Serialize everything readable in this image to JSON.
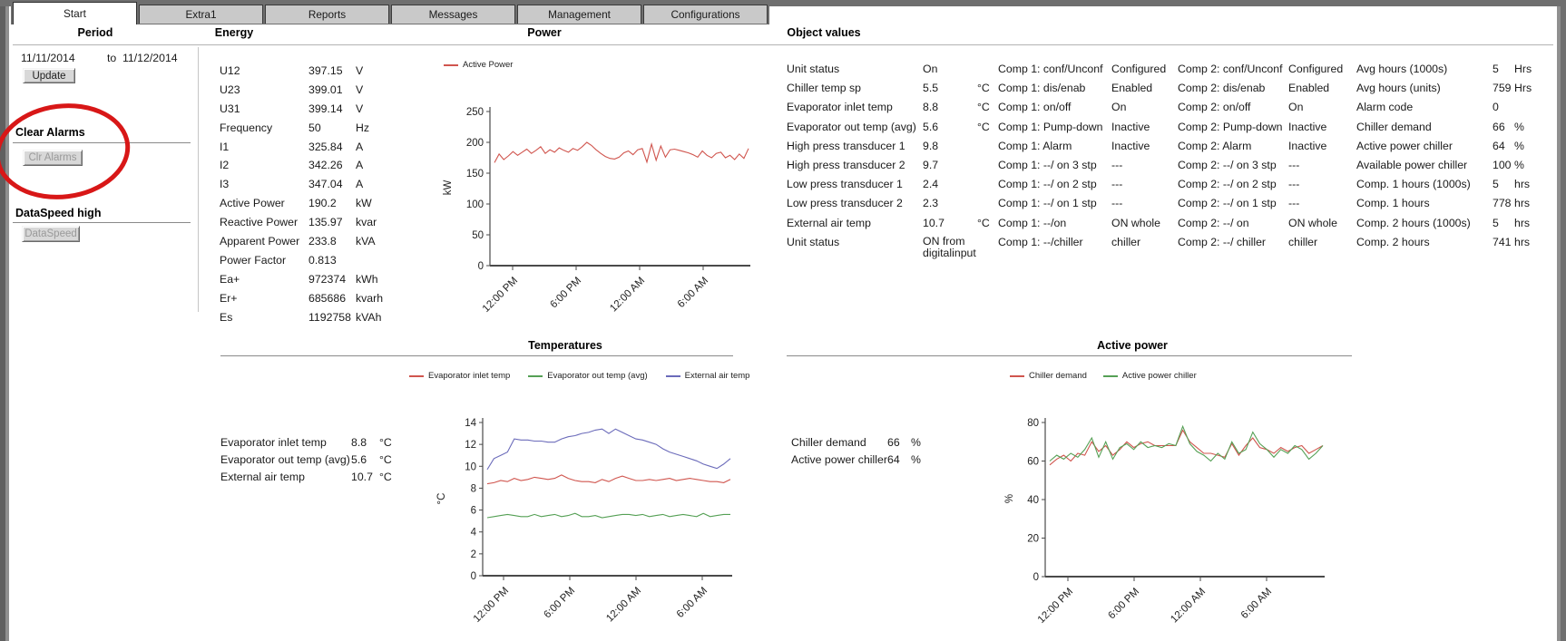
{
  "tabs": [
    {
      "label": "Start",
      "active": true
    },
    {
      "label": "Extra1",
      "active": false
    },
    {
      "label": "Reports",
      "active": false
    },
    {
      "label": "Messages",
      "active": false
    },
    {
      "label": "Management",
      "active": false
    },
    {
      "label": "Configurations",
      "active": false
    }
  ],
  "sections": {
    "period": {
      "title": "Period",
      "date_from": "11/11/2014",
      "to_label": "to",
      "date_to": "11/12/2014",
      "update_button": "Update",
      "clear_alarms_title": "Clear Alarms",
      "clr_alarms_button": "Clr Alarms",
      "dataspeed_title": "DataSpeed high",
      "dataspeed_button": "DataSpeed"
    },
    "energy": {
      "title": "Energy",
      "rows": [
        {
          "label": "U12",
          "value": "397.15",
          "unit": "V"
        },
        {
          "label": "U23",
          "value": "399.01",
          "unit": "V"
        },
        {
          "label": "U31",
          "value": "399.14",
          "unit": "V"
        },
        {
          "label": "Frequency",
          "value": "50",
          "unit": "Hz"
        },
        {
          "label": "I1",
          "value": "325.84",
          "unit": "A"
        },
        {
          "label": "I2",
          "value": "342.26",
          "unit": "A"
        },
        {
          "label": "I3",
          "value": "347.04",
          "unit": "A"
        },
        {
          "label": "Active Power",
          "value": "190.2",
          "unit": "kW"
        },
        {
          "label": "Reactive Power",
          "value": "135.97",
          "unit": "kvar"
        },
        {
          "label": "Apparent Power",
          "value": "233.8",
          "unit": "kVA"
        },
        {
          "label": "Power Factor",
          "value": "0.813",
          "unit": ""
        },
        {
          "label": "Ea+",
          "value": "972374",
          "unit": "kWh"
        },
        {
          "label": "Er+",
          "value": "685686",
          "unit": "kvarh"
        },
        {
          "label": "Es",
          "value": "1192758",
          "unit": "kVAh"
        }
      ]
    },
    "power": {
      "title": "Power"
    },
    "object_values": {
      "title": "Object values",
      "rows": [
        {
          "a_label": "Unit status",
          "a_value": "On",
          "a_unit": "",
          "b_label": "Comp 1: conf/Unconf",
          "b_value": "Configured",
          "c_label": "Comp 2: conf/Unconf",
          "c_value": "Configured",
          "d_label": "Avg hours (1000s)",
          "d_value": "5",
          "d_unit": "Hrs"
        },
        {
          "a_label": "Chiller temp sp",
          "a_value": "5.5",
          "a_unit": "°C",
          "b_label": "Comp 1: dis/enab",
          "b_value": "Enabled",
          "c_label": "Comp 2: dis/enab",
          "c_value": "Enabled",
          "d_label": "Avg hours (units)",
          "d_value": "759",
          "d_unit": "Hrs"
        },
        {
          "a_label": "Evaporator inlet temp",
          "a_value": "8.8",
          "a_unit": "°C",
          "b_label": "Comp 1: on/off",
          "b_value": "On",
          "c_label": "Comp 2: on/off",
          "c_value": "On",
          "d_label": "Alarm code",
          "d_value": "0",
          "d_unit": ""
        },
        {
          "a_label": "Evaporator out temp (avg)",
          "a_value": "5.6",
          "a_unit": "°C",
          "b_label": "Comp 1: Pump-down",
          "b_value": "Inactive",
          "c_label": "Comp 2: Pump-down",
          "c_value": "Inactive",
          "d_label": "Chiller demand",
          "d_value": "66",
          "d_unit": "%"
        },
        {
          "a_label": "High press transducer 1",
          "a_value": "9.8",
          "a_unit": "",
          "b_label": "Comp 1: Alarm",
          "b_value": "Inactive",
          "c_label": "Comp 2: Alarm",
          "c_value": "Inactive",
          "d_label": "Active power chiller",
          "d_value": "64",
          "d_unit": "%"
        },
        {
          "a_label": "High press transducer 2",
          "a_value": "9.7",
          "a_unit": "",
          "b_label": "Comp 1: --/ on 3 stp",
          "b_value": "---",
          "c_label": "Comp 2: --/ on 3 stp",
          "c_value": "---",
          "d_label": "Available power chiller",
          "d_value": "100",
          "d_unit": "%"
        },
        {
          "a_label": "Low press transducer 1",
          "a_value": "2.4",
          "a_unit": "",
          "b_label": "Comp 1: --/ on 2 stp",
          "b_value": "---",
          "c_label": "Comp 2: --/ on 2 stp",
          "c_value": "---",
          "d_label": "Comp. 1 hours (1000s)",
          "d_value": "5",
          "d_unit": "hrs"
        },
        {
          "a_label": "Low press transducer 2",
          "a_value": "2.3",
          "a_unit": "",
          "b_label": "Comp 1: --/ on 1 stp",
          "b_value": "---",
          "c_label": "Comp 2: --/ on 1 stp",
          "c_value": "---",
          "d_label": "Comp. 1 hours",
          "d_value": "778",
          "d_unit": "hrs"
        },
        {
          "a_label": "External air temp",
          "a_value": "10.7",
          "a_unit": "°C",
          "b_label": "Comp 1: --/on",
          "b_value": "ON whole",
          "c_label": "Comp 2: --/ on",
          "c_value": "ON whole",
          "d_label": "Comp. 2 hours (1000s)",
          "d_value": "5",
          "d_unit": "hrs"
        },
        {
          "a_label": "Unit status",
          "a_value": "ON from digitalinput",
          "a_unit": "",
          "b_label": "Comp 1: --/chiller",
          "b_value": "chiller",
          "c_label": "Comp 2: --/ chiller",
          "c_value": "chiller",
          "d_label": "Comp. 2 hours",
          "d_value": "741",
          "d_unit": "hrs"
        }
      ]
    },
    "temperatures": {
      "title": "Temperatures",
      "readouts": [
        {
          "label": "Evaporator inlet temp",
          "value": "8.8",
          "unit": "°C"
        },
        {
          "label": "Evaporator out temp (avg)",
          "value": "5.6",
          "unit": "°C"
        },
        {
          "label": "External air temp",
          "value": "10.7",
          "unit": "°C"
        }
      ]
    },
    "active_power": {
      "title": "Active power",
      "readouts": [
        {
          "label": "Chiller demand",
          "value": "66",
          "unit": "%"
        },
        {
          "label": "Active power chiller",
          "value": "64",
          "unit": "%"
        }
      ]
    }
  },
  "annotation": {
    "shape": "ellipse-highlight",
    "color": "#d81717"
  },
  "chart_data": [
    {
      "id": "power",
      "type": "line",
      "title": "Power",
      "ylabel": "kW",
      "ylim": [
        0,
        250
      ],
      "yticks": [
        0,
        50,
        100,
        150,
        200,
        250
      ],
      "categories": [
        "12:00 PM",
        "6:00 PM",
        "12:00 AM",
        "6:00 AM"
      ],
      "grid": false,
      "legend_position": "top-left",
      "series": [
        {
          "name": "Active Power",
          "color": "#d0554e",
          "values": [
            167,
            181,
            172,
            178,
            185,
            179,
            184,
            189,
            182,
            187,
            193,
            182,
            188,
            184,
            191,
            187,
            184,
            190,
            187,
            193,
            200,
            195,
            188,
            182,
            177,
            174,
            173,
            176,
            183,
            186,
            180,
            188,
            190,
            168,
            197,
            171,
            194,
            176,
            188,
            189,
            187,
            185,
            183,
            180,
            176,
            186,
            179,
            175,
            182,
            184,
            175,
            179,
            172,
            181,
            174,
            190
          ]
        }
      ]
    },
    {
      "id": "temperatures",
      "type": "line",
      "title": "Temperatures",
      "ylabel": "°C",
      "ylim": [
        0,
        14
      ],
      "yticks": [
        0,
        2,
        4,
        6,
        8,
        10,
        12,
        14
      ],
      "categories": [
        "12:00 PM",
        "6:00 PM",
        "12:00 AM",
        "6:00 AM"
      ],
      "grid": false,
      "legend_position": "top",
      "series": [
        {
          "name": "Evaporator inlet temp",
          "color": "#d0554e",
          "values": [
            8.4,
            8.5,
            8.7,
            8.6,
            8.9,
            8.7,
            8.8,
            9.0,
            8.9,
            8.8,
            8.9,
            9.2,
            8.9,
            8.7,
            8.6,
            8.6,
            8.5,
            8.8,
            8.6,
            8.9,
            9.1,
            8.9,
            8.7,
            8.7,
            8.8,
            8.7,
            8.8,
            8.9,
            8.7,
            8.8,
            8.9,
            8.8,
            8.7,
            8.6,
            8.6,
            8.5,
            8.8
          ]
        },
        {
          "name": "Evaporator out temp (avg)",
          "color": "#55a055",
          "values": [
            5.3,
            5.4,
            5.5,
            5.6,
            5.5,
            5.4,
            5.4,
            5.6,
            5.4,
            5.5,
            5.6,
            5.4,
            5.5,
            5.7,
            5.4,
            5.4,
            5.5,
            5.3,
            5.4,
            5.5,
            5.6,
            5.6,
            5.5,
            5.6,
            5.4,
            5.5,
            5.6,
            5.4,
            5.5,
            5.6,
            5.5,
            5.4,
            5.7,
            5.4,
            5.5,
            5.6,
            5.6
          ]
        },
        {
          "name": "External air temp",
          "color": "#6b6bba",
          "values": [
            9.7,
            10.7,
            11.0,
            11.3,
            12.5,
            12.4,
            12.4,
            12.3,
            12.3,
            12.2,
            12.2,
            12.5,
            12.7,
            12.8,
            13.0,
            13.1,
            13.3,
            13.4,
            13.0,
            13.4,
            13.1,
            12.8,
            12.5,
            12.4,
            12.2,
            12.0,
            11.6,
            11.3,
            11.1,
            10.9,
            10.7,
            10.5,
            10.2,
            10.0,
            9.8,
            10.2,
            10.7
          ]
        }
      ]
    },
    {
      "id": "active_power",
      "type": "line",
      "title": "Active power",
      "ylabel": "%",
      "ylim": [
        0,
        80
      ],
      "yticks": [
        0,
        20,
        40,
        60,
        80
      ],
      "categories": [
        "12:00 PM",
        "6:00 PM",
        "12:00 AM",
        "6:00 AM"
      ],
      "grid": false,
      "legend_position": "top",
      "series": [
        {
          "name": "Chiller demand",
          "color": "#d0554e",
          "values": [
            58,
            61,
            63,
            60,
            64,
            63,
            70,
            65,
            68,
            63,
            66,
            70,
            67,
            69,
            70,
            68,
            68,
            68,
            68,
            76,
            70,
            67,
            64,
            64,
            63,
            62,
            69,
            63,
            68,
            72,
            67,
            66,
            64,
            67,
            65,
            67,
            68,
            64,
            66,
            68
          ]
        },
        {
          "name": "Active power chiller",
          "color": "#55a055",
          "values": [
            60,
            63,
            61,
            64,
            62,
            66,
            72,
            62,
            70,
            61,
            67,
            69,
            66,
            70,
            67,
            68,
            67,
            69,
            68,
            78,
            69,
            65,
            63,
            60,
            64,
            61,
            70,
            64,
            66,
            75,
            69,
            66,
            62,
            66,
            64,
            68,
            66,
            61,
            64,
            68
          ]
        }
      ]
    }
  ]
}
